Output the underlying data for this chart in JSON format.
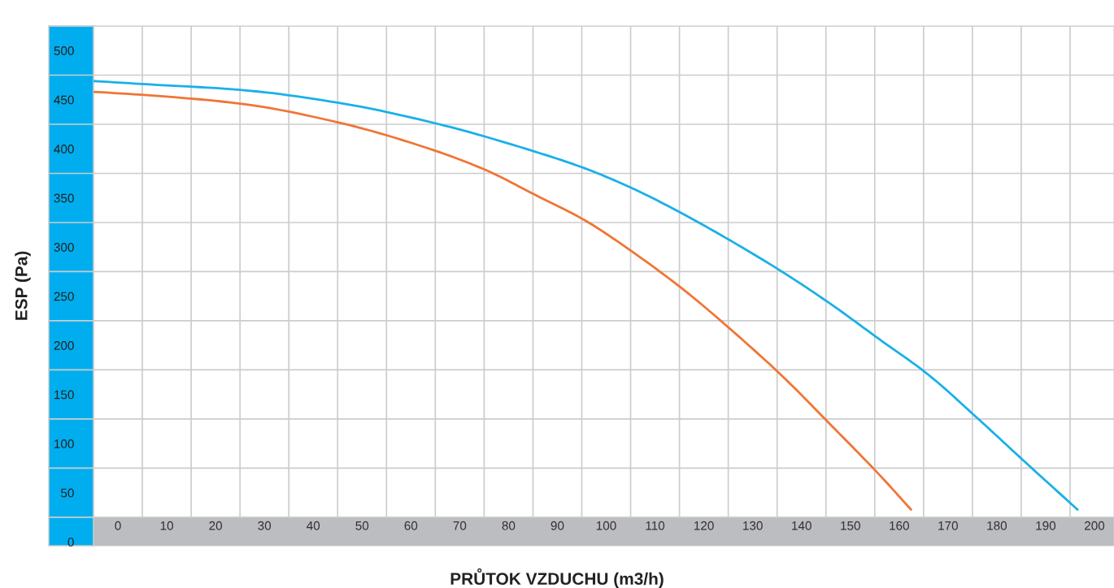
{
  "chart_data": {
    "type": "line",
    "xlabel": "PRŮTOK VZDUCHU (m3/h)",
    "ylabel": "ESP (Pa)",
    "xlim": [
      -5,
      204
    ],
    "ylim": [
      -4,
      525
    ],
    "xticks": [
      0,
      10,
      20,
      30,
      40,
      50,
      60,
      70,
      80,
      90,
      100,
      110,
      120,
      130,
      140,
      150,
      160,
      170,
      180,
      190,
      200
    ],
    "yticks": [
      0,
      50,
      100,
      150,
      200,
      250,
      300,
      350,
      400,
      450,
      500
    ],
    "grid": true,
    "marker": "none",
    "line_style": "solid",
    "series": [
      {
        "color": "#1ab0e8",
        "x": [
          -5,
          4.8,
          25,
          45,
          65,
          85.5,
          95.7,
          105.7,
          116,
          126,
          136,
          146,
          156,
          166,
          176,
          186.5,
          196.5
        ],
        "values": [
          469,
          466,
          460,
          447,
          426,
          397,
          380,
          359,
          333,
          305,
          275,
          242,
          206,
          170,
          126,
          78,
          33
        ]
      },
      {
        "color": "#f07535",
        "x": [
          -5,
          4.8,
          25,
          45,
          65,
          75.5,
          85.5,
          95.7,
          105.7,
          116,
          126,
          136,
          146,
          156,
          162.4
        ],
        "values": [
          458,
          455,
          446,
          427,
          398,
          378,
          353,
          327,
          294,
          256,
          214,
          169,
          119,
          68,
          33
        ]
      }
    ]
  }
}
